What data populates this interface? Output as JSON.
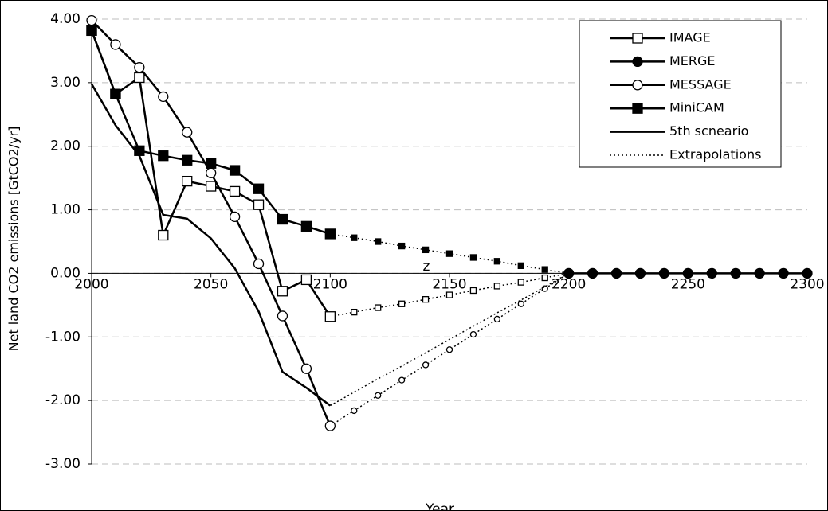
{
  "chart_data": {
    "type": "line",
    "x_label": "Year",
    "y_label": "Net land CO2 emissions [GtCO2/yr]",
    "annotation": "z",
    "xlim": [
      2000,
      2300
    ],
    "xticks": [
      2000,
      2050,
      2100,
      2150,
      2200,
      2250,
      2300
    ],
    "ylim": [
      -3,
      4
    ],
    "yticks": [
      {
        "value": 4,
        "label": "4.00"
      },
      {
        "value": 3,
        "label": "3.00"
      },
      {
        "value": 2,
        "label": "2.00"
      },
      {
        "value": 1,
        "label": "1.00"
      },
      {
        "value": 0,
        "label": "0.00"
      },
      {
        "value": -1,
        "label": "-1.00"
      },
      {
        "value": -2,
        "label": "-2.00"
      },
      {
        "value": -3,
        "label": "-3.00"
      }
    ],
    "grid": true,
    "legend": "upper right",
    "series": [
      {
        "name": "IMAGE",
        "color": "#000000",
        "marker": "open-square",
        "x": [
          2000,
          2010,
          2020,
          2030,
          2040,
          2050,
          2060,
          2070,
          2080,
          2090,
          2100
        ],
        "values": [
          3.82,
          2.82,
          3.08,
          0.6,
          1.45,
          1.37,
          1.29,
          1.08,
          -0.28,
          -0.1,
          -0.68
        ]
      },
      {
        "name": "MERGE",
        "color": "#000000",
        "marker": "filled-circle",
        "x": [
          2200,
          2210,
          2220,
          2230,
          2240,
          2250,
          2260,
          2270,
          2280,
          2290,
          2300
        ],
        "values": [
          0,
          0,
          0,
          0,
          0,
          0,
          0,
          0,
          0,
          0,
          0
        ]
      },
      {
        "name": "MESSAGE",
        "color": "#000000",
        "marker": "open-circle",
        "x": [
          2000,
          2010,
          2020,
          2030,
          2040,
          2050,
          2060,
          2070,
          2080,
          2090,
          2100
        ],
        "values": [
          3.98,
          3.6,
          3.24,
          2.78,
          2.22,
          1.58,
          0.89,
          0.15,
          -0.67,
          -1.5,
          -2.4
        ]
      },
      {
        "name": "MiniCAM",
        "color": "#000000",
        "marker": "filled-square",
        "x": [
          2000,
          2010,
          2020,
          2030,
          2040,
          2050,
          2060,
          2070,
          2080,
          2090,
          2100
        ],
        "values": [
          3.82,
          2.82,
          1.93,
          1.85,
          1.78,
          1.73,
          1.62,
          1.33,
          0.85,
          0.74,
          0.62
        ]
      },
      {
        "name": "5th scneario",
        "color": "#000000",
        "marker": "none",
        "x": [
          2000,
          2010,
          2020,
          2030,
          2040,
          2050,
          2060,
          2070,
          2080,
          2090,
          2100
        ],
        "values": [
          2.98,
          2.33,
          1.85,
          0.92,
          0.86,
          0.55,
          0.08,
          -0.6,
          -1.55,
          -1.8,
          -2.08
        ]
      }
    ],
    "extrapolations": {
      "name": "Extrapolations",
      "color": "#000000",
      "dash": "dotted",
      "x": [
        2100,
        2110,
        2120,
        2130,
        2140,
        2150,
        2160,
        2170,
        2180,
        2190,
        2200
      ],
      "series": [
        {
          "marker": "open-square",
          "values": [
            -0.68,
            -0.61,
            -0.54,
            -0.48,
            -0.41,
            -0.34,
            -0.27,
            -0.2,
            -0.14,
            -0.07,
            0
          ]
        },
        {
          "marker": "open-circle",
          "values": [
            -2.4,
            -2.16,
            -1.92,
            -1.68,
            -1.44,
            -1.2,
            -0.96,
            -0.72,
            -0.48,
            -0.24,
            0
          ]
        },
        {
          "marker": "filled-square",
          "values": [
            0.62,
            0.56,
            0.5,
            0.43,
            0.37,
            0.31,
            0.25,
            0.19,
            0.12,
            0.06,
            0
          ]
        },
        {
          "marker": "none",
          "values": [
            -2.08,
            -1.87,
            -1.66,
            -1.46,
            -1.25,
            -1.04,
            -0.83,
            -0.62,
            -0.42,
            -0.21,
            0
          ]
        }
      ]
    }
  }
}
